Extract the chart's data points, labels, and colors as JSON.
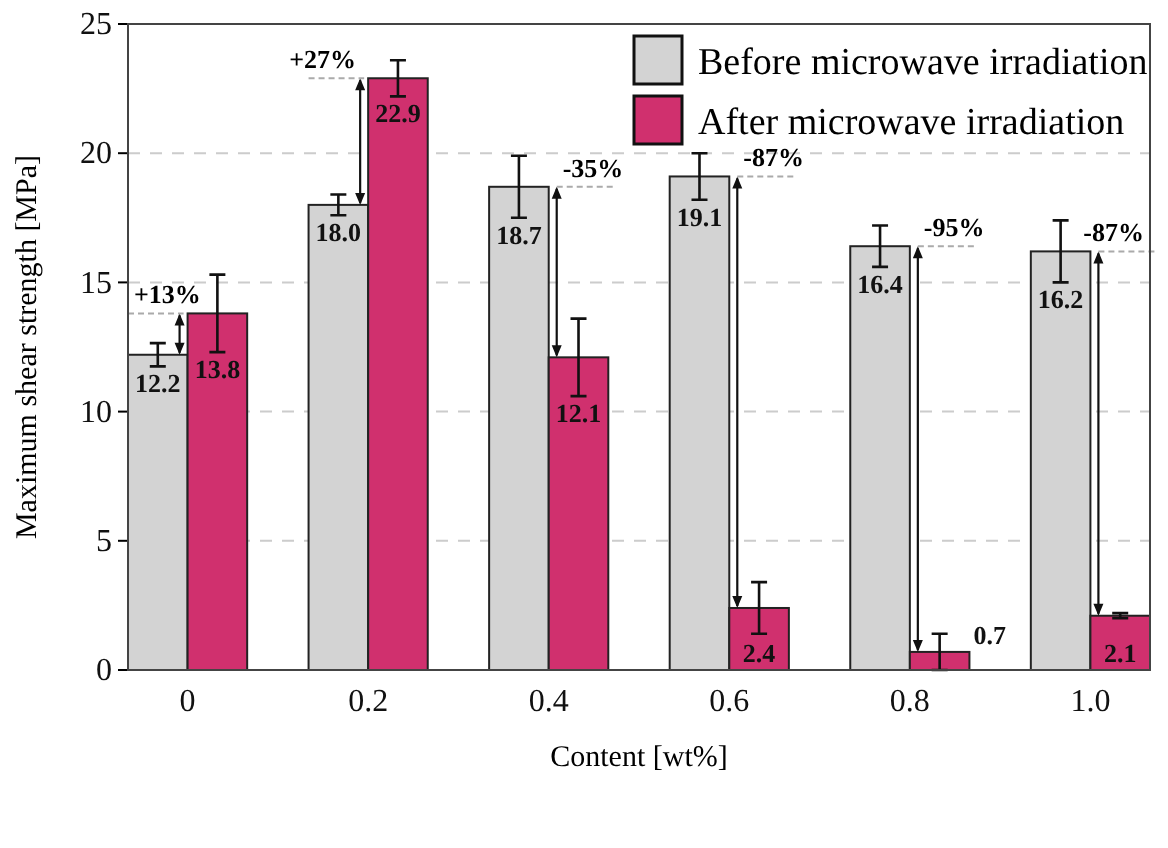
{
  "chart_data": {
    "type": "bar",
    "xlabel": "Content [wt%]",
    "ylabel": "Maximum shear strength [MPa]",
    "categories": [
      "0",
      "0.2",
      "0.4",
      "0.6",
      "0.8",
      "1.0"
    ],
    "series": [
      {
        "name": "Before microwave irradiation",
        "color": "#d3d3d3",
        "values": [
          12.2,
          18.0,
          18.7,
          19.1,
          16.4,
          16.2
        ],
        "value_labels": [
          "12.2",
          "18.0",
          "18.7",
          "19.1",
          "16.4",
          "16.2"
        ],
        "errors": [
          0.45,
          0.4,
          1.2,
          0.9,
          0.8,
          1.2
        ]
      },
      {
        "name": "After microwave irradiation",
        "color": "#d0306e",
        "values": [
          13.8,
          22.9,
          12.1,
          2.4,
          0.7,
          2.1
        ],
        "value_labels": [
          "13.8",
          "22.9",
          "12.1",
          "2.4",
          "0.7",
          "2.1"
        ],
        "errors": [
          1.5,
          0.7,
          1.5,
          1.0,
          0.7,
          0.1
        ]
      }
    ],
    "ylim": [
      0,
      25
    ],
    "yticks": [
      0,
      5,
      10,
      15,
      20,
      25
    ],
    "grid": "y",
    "legend": "top right",
    "annotations": [
      {
        "text": "+13%",
        "x": "0",
        "y": 13.8
      },
      {
        "text": "+27%",
        "x": "0.2",
        "y": 22.9
      },
      {
        "text": "-35%",
        "x": "0.4",
        "y": 18.7
      },
      {
        "text": "-87%",
        "x": "0.6",
        "y": 19.1
      },
      {
        "text": "-95%",
        "x": "0.8",
        "y": 16.4
      },
      {
        "text": "-87%",
        "x": "1.0",
        "y": 16.2
      }
    ]
  }
}
